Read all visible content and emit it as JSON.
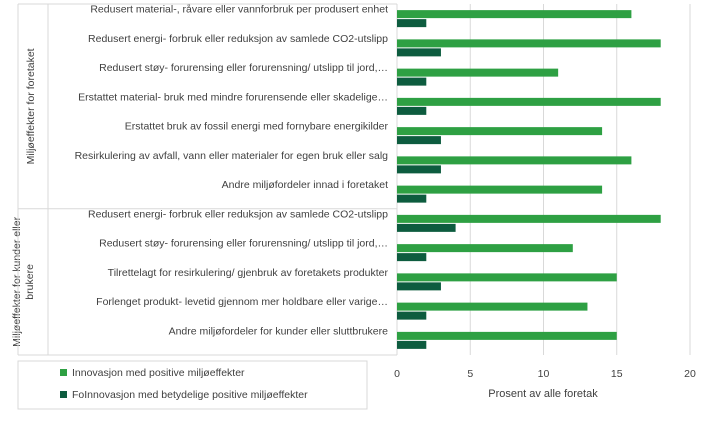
{
  "chart_data": {
    "type": "bar",
    "orientation": "horizontal",
    "categories": [
      "Redusert material-, råvare eller vannforbruk per produsert enhet",
      "Redusert energi- forbruk eller reduksjon av samlede CO2-utslipp",
      "Redusert støy- forurensing eller forurensning/ utslipp til jord,…",
      "Erstattet material- bruk med mindre forurensende eller skadelige…",
      "Erstattet bruk av fossil energi med fornybare energikilder",
      "Resirkulering av avfall, vann eller materialer for egen bruk eller salg",
      "Andre miljøfordeler innad i foretaket",
      "Redusert energi- forbruk eller reduksjon av samlede CO2-utslipp",
      "Redusert støy- forurensing eller forurensning/ utslipp til jord,…",
      "Tilrettelagt for resirkulering/ gjenbruk av foretakets produkter",
      "Forlenget produkt- levetid gjennom mer holdbare eller varige…",
      "Andre miljøfordeler for kunder eller sluttbrukere"
    ],
    "groups": [
      {
        "label": "Miljøeffekter for foretaket",
        "start": 0,
        "end": 6
      },
      {
        "label": "Miljøeffekter for kunder eller brukere",
        "start": 7,
        "end": 11
      }
    ],
    "series": [
      {
        "name": "Innovasjon med positive miljøeffekter",
        "color": "#2ea043",
        "values": [
          16,
          18,
          11,
          18,
          14,
          16,
          14,
          18,
          12,
          15,
          13,
          15
        ]
      },
      {
        "name": "FoInnovasjon med betydelige positive miljøeffekter",
        "color": "#0d5c3f",
        "values": [
          2,
          3,
          2,
          2,
          3,
          3,
          2,
          4,
          2,
          3,
          2,
          2
        ]
      }
    ],
    "xlabel": "Prosent av alle foretak",
    "xlim": [
      0,
      20
    ],
    "xticks": [
      0,
      5,
      10,
      15,
      20
    ],
    "grid": true,
    "legend_position": "bottom-left"
  }
}
